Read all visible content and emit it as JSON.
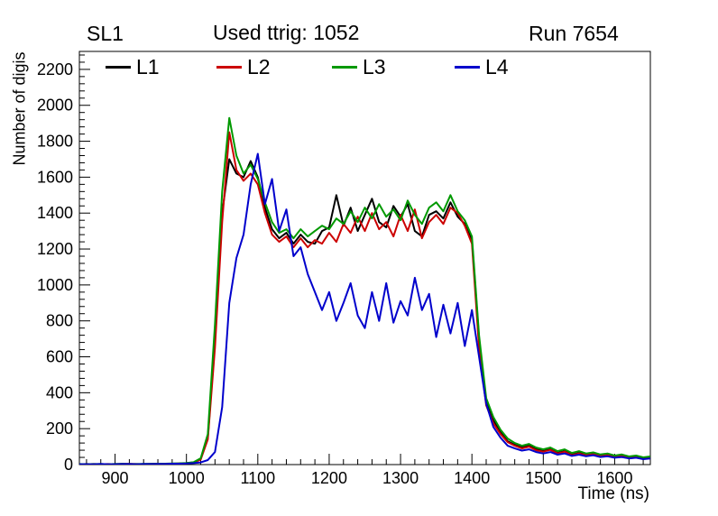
{
  "header": {
    "left": "SL1",
    "center": "Used ttrig: 1052",
    "right": "Run 7654"
  },
  "chart_data": {
    "type": "line",
    "title": "",
    "xlabel": "Time (ns)",
    "ylabel": "Number of digis",
    "xlim": [
      850,
      1650
    ],
    "ylim": [
      0,
      2300
    ],
    "x_major_ticks": [
      900,
      1000,
      1100,
      1200,
      1300,
      1400,
      1500,
      1600
    ],
    "y_major_ticks": [
      0,
      200,
      400,
      600,
      800,
      1000,
      1200,
      1400,
      1600,
      1800,
      2000,
      2200
    ],
    "x_minor_step": 20,
    "y_minor_step": 40,
    "grid": false,
    "legend_position": "top-inside",
    "x": [
      850,
      860,
      870,
      880,
      890,
      900,
      910,
      920,
      930,
      940,
      950,
      960,
      970,
      980,
      990,
      1000,
      1010,
      1020,
      1030,
      1040,
      1050,
      1060,
      1070,
      1080,
      1090,
      1100,
      1110,
      1120,
      1130,
      1140,
      1150,
      1160,
      1170,
      1180,
      1190,
      1200,
      1210,
      1220,
      1230,
      1240,
      1250,
      1260,
      1270,
      1280,
      1290,
      1300,
      1310,
      1320,
      1330,
      1340,
      1350,
      1360,
      1370,
      1380,
      1390,
      1400,
      1410,
      1420,
      1430,
      1440,
      1450,
      1460,
      1470,
      1480,
      1490,
      1500,
      1510,
      1520,
      1530,
      1540,
      1550,
      1560,
      1570,
      1580,
      1590,
      1600,
      1610,
      1620,
      1630,
      1640,
      1650
    ],
    "series": [
      {
        "name": "L1",
        "color": "#000000",
        "values": [
          2,
          3,
          2,
          3,
          2,
          3,
          4,
          3,
          2,
          3,
          4,
          5,
          4,
          5,
          6,
          8,
          12,
          30,
          150,
          700,
          1400,
          1700,
          1620,
          1600,
          1690,
          1600,
          1430,
          1310,
          1260,
          1290,
          1230,
          1280,
          1240,
          1230,
          1300,
          1320,
          1500,
          1330,
          1430,
          1300,
          1390,
          1480,
          1350,
          1320,
          1440,
          1380,
          1450,
          1300,
          1270,
          1390,
          1410,
          1370,
          1460,
          1380,
          1340,
          1250,
          700,
          350,
          250,
          180,
          130,
          110,
          95,
          105,
          85,
          75,
          85,
          65,
          75,
          55,
          65,
          55,
          60,
          50,
          55,
          45,
          50,
          40,
          45,
          35,
          40
        ]
      },
      {
        "name": "L2",
        "color": "#cc0000",
        "values": [
          2,
          2,
          3,
          2,
          3,
          2,
          3,
          4,
          3,
          2,
          3,
          4,
          5,
          4,
          6,
          7,
          11,
          28,
          140,
          650,
          1350,
          1850,
          1640,
          1580,
          1620,
          1560,
          1400,
          1280,
          1240,
          1270,
          1210,
          1260,
          1210,
          1250,
          1230,
          1290,
          1240,
          1340,
          1290,
          1380,
          1300,
          1400,
          1310,
          1350,
          1270,
          1390,
          1300,
          1420,
          1260,
          1350,
          1390,
          1340,
          1430,
          1400,
          1330,
          1230,
          650,
          330,
          230,
          170,
          125,
          105,
          90,
          100,
          80,
          72,
          82,
          62,
          72,
          52,
          62,
          52,
          58,
          48,
          52,
          42,
          48,
          38,
          42,
          33,
          38
        ]
      },
      {
        "name": "L3",
        "color": "#009900",
        "values": [
          3,
          2,
          3,
          3,
          2,
          3,
          4,
          3,
          3,
          4,
          4,
          5,
          5,
          6,
          7,
          9,
          13,
          35,
          170,
          780,
          1520,
          1930,
          1720,
          1620,
          1670,
          1590,
          1460,
          1350,
          1290,
          1310,
          1260,
          1310,
          1270,
          1300,
          1330,
          1310,
          1370,
          1340,
          1410,
          1350,
          1430,
          1370,
          1450,
          1380,
          1420,
          1360,
          1470,
          1390,
          1340,
          1430,
          1460,
          1410,
          1500,
          1410,
          1360,
          1270,
          720,
          370,
          265,
          195,
          145,
          120,
          105,
          115,
          95,
          85,
          95,
          75,
          85,
          65,
          75,
          62,
          68,
          56,
          62,
          50,
          56,
          45,
          50,
          40,
          45
        ]
      },
      {
        "name": "L4",
        "color": "#0000cc",
        "values": [
          2,
          2,
          2,
          3,
          2,
          2,
          3,
          3,
          2,
          3,
          3,
          4,
          4,
          5,
          5,
          6,
          8,
          12,
          25,
          70,
          320,
          900,
          1150,
          1280,
          1560,
          1730,
          1450,
          1590,
          1300,
          1420,
          1160,
          1210,
          1060,
          960,
          860,
          960,
          800,
          900,
          1010,
          830,
          760,
          960,
          800,
          1010,
          790,
          910,
          830,
          1040,
          860,
          950,
          710,
          890,
          730,
          900,
          660,
          860,
          600,
          340,
          210,
          150,
          105,
          90,
          78,
          85,
          70,
          62,
          70,
          55,
          62,
          48,
          55,
          46,
          52,
          42,
          46,
          38,
          42,
          34,
          38,
          30,
          34
        ]
      }
    ]
  }
}
